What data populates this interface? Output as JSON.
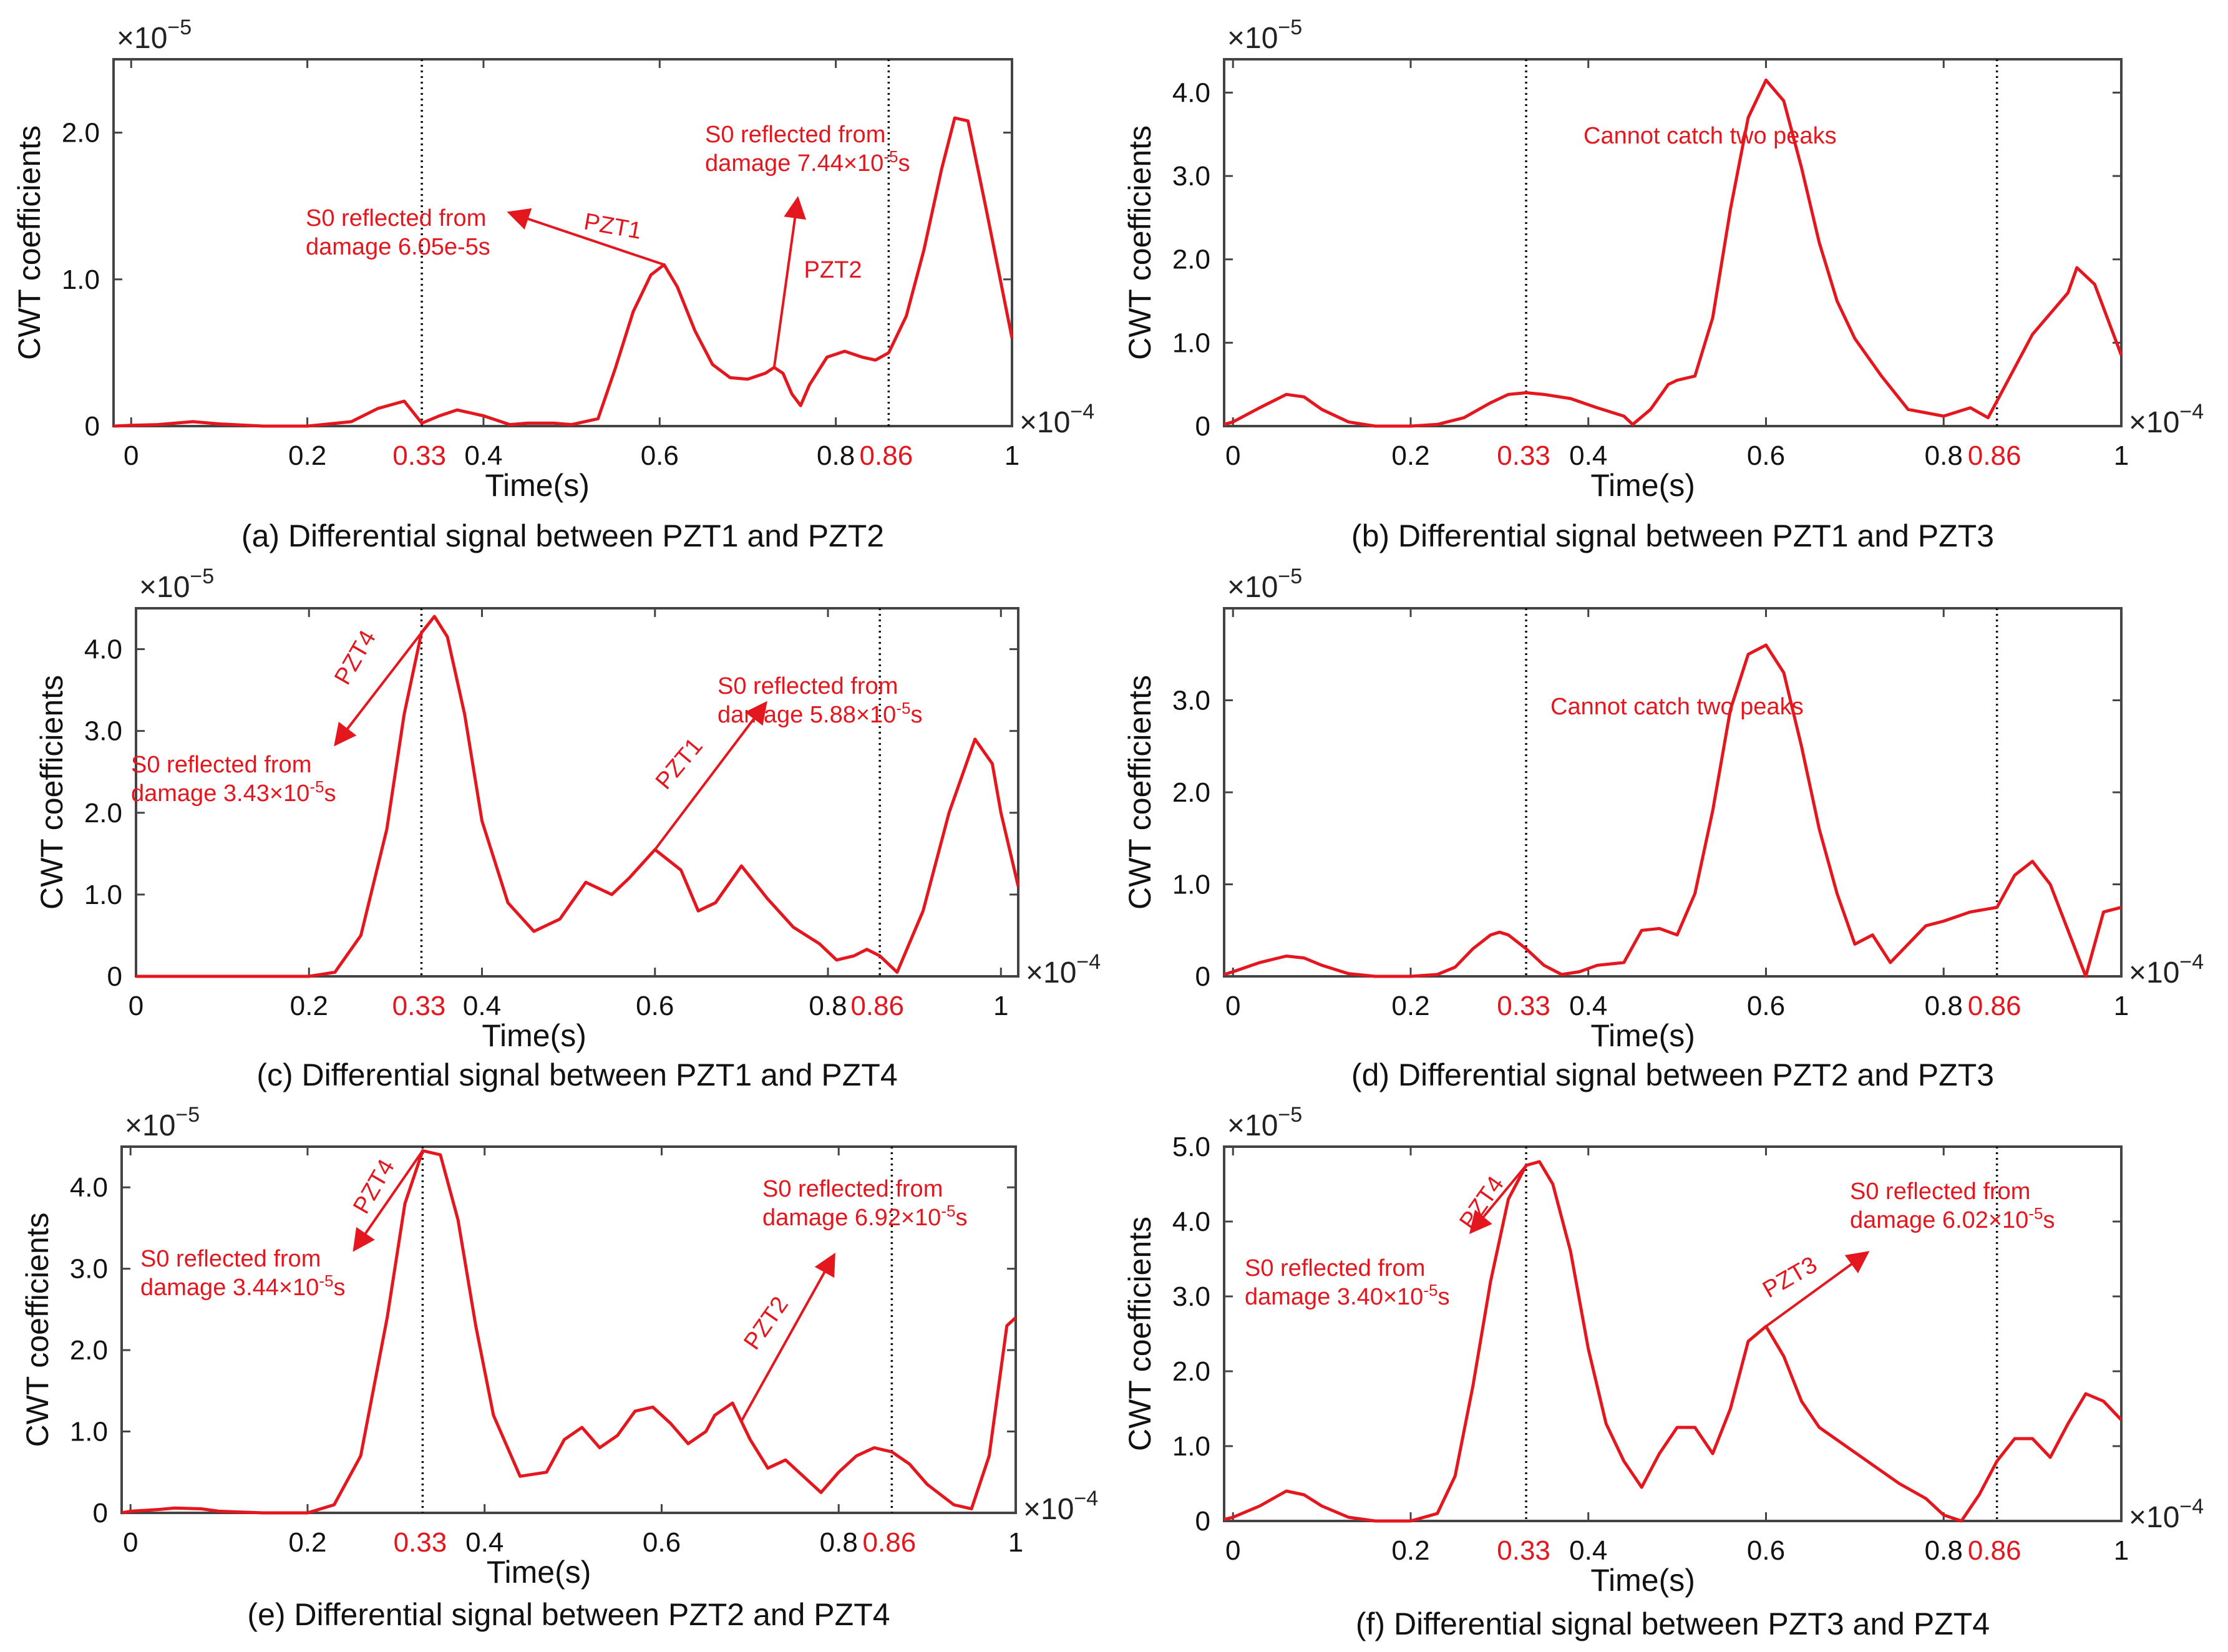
{
  "figure": {
    "panels": [
      {
        "id": "a",
        "caption": "(a) Differential signal between PZT1 and PZT2",
        "ylabel": "CWT coefficients",
        "xlabel": "Time(s)",
        "y_multiplier": "×10",
        "y_exponent": "−5",
        "x_multiplier": "×10",
        "x_exponent": "−4",
        "y_ticks": [
          "0",
          "1.0",
          "2.0"
        ],
        "x_ticks_black": [
          "0",
          "0.2",
          "0.4",
          "0.6",
          "0.8",
          "1"
        ],
        "x_ticks_red": [
          "0.33",
          "0.86"
        ],
        "annotations": [
          {
            "line1": "S0 reflected from",
            "line2": "damage 6.05e-5s",
            "sensor": "PZT1"
          },
          {
            "line1": "S0 reflected from",
            "line2": "damage 7.44×10",
            "line2_sup": "-5",
            "line2_tail": "s",
            "sensor": "PZT2"
          }
        ]
      },
      {
        "id": "b",
        "caption": "(b) Differential signal between PZT1 and PZT3",
        "ylabel": "CWT coefficients",
        "xlabel": "Time(s)",
        "y_multiplier": "×10",
        "y_exponent": "−5",
        "x_multiplier": "×10",
        "x_exponent": "−4",
        "y_ticks": [
          "0",
          "1.0",
          "2.0",
          "3.0",
          "4.0"
        ],
        "x_ticks_black": [
          "0",
          "0.2",
          "0.4",
          "0.6",
          "0.8",
          "1"
        ],
        "x_ticks_red": [
          "0.33",
          "0.86"
        ],
        "note": "Cannot catch two peaks"
      },
      {
        "id": "c",
        "caption": "(c) Differential signal between PZT1 and PZT4",
        "ylabel": "CWT coefficients",
        "xlabel": "Time(s)",
        "y_multiplier": "×10",
        "y_exponent": "−5",
        "x_multiplier": "×10",
        "x_exponent": "−4",
        "y_ticks": [
          "0",
          "1.0",
          "2.0",
          "3.0",
          "4.0"
        ],
        "x_ticks_black": [
          "0",
          "0.2",
          "0.4",
          "0.6",
          "0.8",
          "1"
        ],
        "x_ticks_red": [
          "0.33",
          "0.86"
        ],
        "annotations": [
          {
            "line1": "S0 reflected from",
            "line2": "damage 3.43×10",
            "line2_sup": "-5",
            "line2_tail": "s",
            "sensor": "PZT4"
          },
          {
            "line1": "S0 reflected from",
            "line2": "damage 5.88×10",
            "line2_sup": "-5",
            "line2_tail": "s",
            "sensor": "PZT1"
          }
        ]
      },
      {
        "id": "d",
        "caption": "(d) Differential signal between PZT2 and PZT3",
        "ylabel": "CWT coefficients",
        "xlabel": "Time(s)",
        "y_multiplier": "×10",
        "y_exponent": "−5",
        "x_multiplier": "×10",
        "x_exponent": "−4",
        "y_ticks": [
          "0",
          "1.0",
          "2.0",
          "3.0"
        ],
        "x_ticks_black": [
          "0",
          "0.2",
          "0.4",
          "0.6",
          "0.8",
          "1"
        ],
        "x_ticks_red": [
          "0.33",
          "0.86"
        ],
        "note": "Cannot catch two peaks"
      },
      {
        "id": "e",
        "caption": "(e) Differential signal between PZT2 and PZT4",
        "ylabel": "CWT coefficients",
        "xlabel": "Time(s)",
        "y_multiplier": "×10",
        "y_exponent": "−5",
        "x_multiplier": "×10",
        "x_exponent": "−4",
        "y_ticks": [
          "0",
          "1.0",
          "2.0",
          "3.0",
          "4.0"
        ],
        "x_ticks_black": [
          "0",
          "0.2",
          "0.4",
          "0.6",
          "0.8",
          "1"
        ],
        "x_ticks_red": [
          "0.33",
          "0.86"
        ],
        "annotations": [
          {
            "line1": "S0 reflected from",
            "line2": "damage 3.44×10",
            "line2_sup": "-5",
            "line2_tail": "s",
            "sensor": "PZT4"
          },
          {
            "line1": "S0 reflected from",
            "line2": "damage 6.92×10",
            "line2_sup": "-5",
            "line2_tail": "s",
            "sensor": "PZT2"
          }
        ]
      },
      {
        "id": "f",
        "caption": "(f) Differential signal between PZT3 and PZT4",
        "ylabel": "CWT coefficients",
        "xlabel": "Time(s)",
        "y_multiplier": "×10",
        "y_exponent": "−5",
        "x_multiplier": "×10",
        "x_exponent": "−4",
        "y_ticks": [
          "0",
          "1.0",
          "2.0",
          "3.0",
          "4.0",
          "5.0"
        ],
        "x_ticks_black": [
          "0",
          "0.2",
          "0.4",
          "0.6",
          "0.8",
          "1"
        ],
        "x_ticks_red": [
          "0.33",
          "0.86"
        ],
        "annotations": [
          {
            "line1": "S0 reflected from",
            "line2": "damage 3.40×10",
            "line2_sup": "-5",
            "line2_tail": "s",
            "sensor": "PZT4"
          },
          {
            "line1": "S0 reflected from",
            "line2": "damage 6.02×10",
            "line2_sup": "-5",
            "line2_tail": "s",
            "sensor": "PZT3"
          }
        ]
      }
    ]
  },
  "colors": {
    "curve": "#e4161e",
    "axis": "#444444",
    "reference_line": "#111111",
    "text": "#111111"
  },
  "chart_data": [
    {
      "type": "line",
      "title": "(a) Differential signal between PZT1 and PZT2",
      "xlabel": "Time(s)",
      "ylabel": "CWT coefficients",
      "x_unit_scale": "1e-4",
      "y_unit_scale": "1e-5",
      "xlim": [
        -0.02,
        1.0
      ],
      "ylim": [
        0,
        2.5
      ],
      "reference_lines_x": [
        0.33,
        0.86
      ],
      "series": [
        {
          "name": "CWT",
          "x": [
            -0.02,
            0,
            0.03,
            0.05,
            0.07,
            0.1,
            0.15,
            0.2,
            0.25,
            0.28,
            0.31,
            0.33,
            0.35,
            0.37,
            0.4,
            0.43,
            0.45,
            0.48,
            0.5,
            0.53,
            0.55,
            0.57,
            0.59,
            0.605,
            0.62,
            0.64,
            0.66,
            0.68,
            0.7,
            0.72,
            0.73,
            0.74,
            0.75,
            0.76,
            0.77,
            0.79,
            0.81,
            0.83,
            0.845,
            0.86,
            0.88,
            0.9,
            0.92,
            0.935,
            0.95,
            0.97,
            1.0
          ],
          "y": [
            0,
            0.005,
            0.01,
            0.02,
            0.03,
            0.015,
            0,
            0,
            0.03,
            0.12,
            0.17,
            0.02,
            0.07,
            0.11,
            0.07,
            0.01,
            0.02,
            0.02,
            0.01,
            0.05,
            0.4,
            0.78,
            1.03,
            1.1,
            0.95,
            0.65,
            0.42,
            0.33,
            0.32,
            0.36,
            0.4,
            0.36,
            0.22,
            0.14,
            0.28,
            0.47,
            0.51,
            0.47,
            0.45,
            0.5,
            0.75,
            1.2,
            1.75,
            2.1,
            2.08,
            1.5,
            0.6
          ]
        }
      ]
    },
    {
      "type": "line",
      "title": "(b) Differential signal between PZT1 and PZT3",
      "xlabel": "Time(s)",
      "ylabel": "CWT coefficients",
      "x_unit_scale": "1e-4",
      "y_unit_scale": "1e-5",
      "xlim": [
        -0.01,
        1.0
      ],
      "ylim": [
        0,
        4.4
      ],
      "reference_lines_x": [
        0.33,
        0.86
      ],
      "series": [
        {
          "name": "CWT",
          "x": [
            -0.01,
            0,
            0.03,
            0.06,
            0.08,
            0.1,
            0.13,
            0.16,
            0.2,
            0.23,
            0.26,
            0.29,
            0.31,
            0.33,
            0.35,
            0.38,
            0.41,
            0.44,
            0.45,
            0.47,
            0.49,
            0.5,
            0.52,
            0.54,
            0.56,
            0.58,
            0.6,
            0.62,
            0.64,
            0.66,
            0.68,
            0.7,
            0.73,
            0.76,
            0.8,
            0.83,
            0.85,
            0.86,
            0.88,
            0.9,
            0.92,
            0.94,
            0.95,
            0.97,
            1.0
          ],
          "y": [
            0.02,
            0.05,
            0.22,
            0.38,
            0.35,
            0.2,
            0.05,
            0,
            0,
            0.02,
            0.1,
            0.28,
            0.38,
            0.4,
            0.38,
            0.33,
            0.22,
            0.12,
            0.02,
            0.2,
            0.5,
            0.55,
            0.6,
            1.3,
            2.6,
            3.7,
            4.15,
            3.9,
            3.1,
            2.2,
            1.5,
            1.05,
            0.6,
            0.2,
            0.12,
            0.22,
            0.1,
            0.3,
            0.7,
            1.1,
            1.35,
            1.6,
            1.9,
            1.7,
            0.85
          ]
        }
      ]
    },
    {
      "type": "line",
      "title": "(c) Differential signal between PZT1 and PZT4",
      "xlabel": "Time(s)",
      "ylabel": "CWT coefficients",
      "x_unit_scale": "1e-4",
      "y_unit_scale": "1e-5",
      "xlim": [
        0,
        1.02
      ],
      "ylim": [
        0,
        4.5
      ],
      "reference_lines_x": [
        0.33,
        0.86
      ],
      "series": [
        {
          "name": "CWT",
          "x": [
            0,
            0.1,
            0.2,
            0.23,
            0.26,
            0.29,
            0.31,
            0.33,
            0.345,
            0.36,
            0.38,
            0.4,
            0.43,
            0.46,
            0.49,
            0.52,
            0.55,
            0.57,
            0.6,
            0.63,
            0.65,
            0.67,
            0.7,
            0.73,
            0.76,
            0.79,
            0.81,
            0.83,
            0.845,
            0.86,
            0.88,
            0.91,
            0.94,
            0.97,
            0.99,
            1.0,
            1.02
          ],
          "y": [
            0,
            0,
            0,
            0.05,
            0.5,
            1.8,
            3.2,
            4.2,
            4.4,
            4.15,
            3.2,
            1.9,
            0.9,
            0.55,
            0.7,
            1.15,
            1.0,
            1.2,
            1.55,
            1.3,
            0.8,
            0.9,
            1.35,
            0.95,
            0.6,
            0.4,
            0.2,
            0.25,
            0.33,
            0.25,
            0.05,
            0.8,
            2.0,
            2.9,
            2.6,
            2.0,
            1.1
          ]
        }
      ]
    },
    {
      "type": "line",
      "title": "(d) Differential signal between PZT2 and PZT3",
      "xlabel": "Time(s)",
      "ylabel": "CWT coefficients",
      "x_unit_scale": "1e-4",
      "y_unit_scale": "1e-5",
      "xlim": [
        -0.01,
        1.0
      ],
      "ylim": [
        0,
        4.0
      ],
      "reference_lines_x": [
        0.33,
        0.86
      ],
      "series": [
        {
          "name": "CWT",
          "x": [
            -0.01,
            0,
            0.03,
            0.06,
            0.08,
            0.1,
            0.13,
            0.16,
            0.2,
            0.23,
            0.25,
            0.27,
            0.29,
            0.3,
            0.31,
            0.33,
            0.35,
            0.37,
            0.39,
            0.41,
            0.44,
            0.46,
            0.48,
            0.5,
            0.52,
            0.54,
            0.56,
            0.58,
            0.6,
            0.62,
            0.64,
            0.66,
            0.68,
            0.7,
            0.72,
            0.74,
            0.76,
            0.78,
            0.8,
            0.83,
            0.86,
            0.88,
            0.9,
            0.92,
            0.94,
            0.96,
            0.98,
            1.0
          ],
          "y": [
            0.02,
            0.05,
            0.15,
            0.22,
            0.2,
            0.12,
            0.03,
            0,
            0,
            0.02,
            0.1,
            0.3,
            0.45,
            0.48,
            0.45,
            0.3,
            0.12,
            0.02,
            0.05,
            0.12,
            0.15,
            0.5,
            0.52,
            0.45,
            0.9,
            1.8,
            2.9,
            3.5,
            3.6,
            3.3,
            2.5,
            1.6,
            0.9,
            0.35,
            0.45,
            0.15,
            0.35,
            0.55,
            0.6,
            0.7,
            0.75,
            1.1,
            1.25,
            1.0,
            0.5,
            0.0,
            0.7,
            0.75
          ]
        }
      ]
    },
    {
      "type": "line",
      "title": "(e) Differential signal between PZT2 and PZT4",
      "xlabel": "Time(s)",
      "ylabel": "CWT coefficients",
      "x_unit_scale": "1e-4",
      "y_unit_scale": "1e-5",
      "xlim": [
        -0.01,
        1.0
      ],
      "ylim": [
        0,
        4.5
      ],
      "reference_lines_x": [
        0.33,
        0.86
      ],
      "series": [
        {
          "name": "CWT",
          "x": [
            -0.01,
            0,
            0.03,
            0.05,
            0.08,
            0.1,
            0.15,
            0.2,
            0.23,
            0.26,
            0.29,
            0.31,
            0.33,
            0.35,
            0.37,
            0.39,
            0.41,
            0.44,
            0.47,
            0.49,
            0.51,
            0.53,
            0.55,
            0.57,
            0.59,
            0.61,
            0.63,
            0.65,
            0.66,
            0.68,
            0.7,
            0.72,
            0.74,
            0.76,
            0.78,
            0.8,
            0.82,
            0.84,
            0.86,
            0.88,
            0.9,
            0.93,
            0.95,
            0.97,
            0.99,
            1.0
          ],
          "y": [
            0,
            0.02,
            0.04,
            0.06,
            0.05,
            0.02,
            0,
            0,
            0.1,
            0.7,
            2.4,
            3.8,
            4.45,
            4.4,
            3.6,
            2.3,
            1.2,
            0.45,
            0.5,
            0.9,
            1.05,
            0.8,
            0.95,
            1.25,
            1.3,
            1.1,
            0.85,
            1.0,
            1.2,
            1.35,
            0.9,
            0.55,
            0.65,
            0.45,
            0.25,
            0.5,
            0.7,
            0.8,
            0.75,
            0.6,
            0.35,
            0.1,
            0.05,
            0.7,
            2.3,
            2.4
          ]
        }
      ]
    },
    {
      "type": "line",
      "title": "(f) Differential signal between PZT3 and PZT4",
      "xlabel": "Time(s)",
      "ylabel": "CWT coefficients",
      "x_unit_scale": "1e-4",
      "y_unit_scale": "1e-5",
      "xlim": [
        -0.01,
        1.0
      ],
      "ylim": [
        0,
        5.0
      ],
      "reference_lines_x": [
        0.33,
        0.86
      ],
      "series": [
        {
          "name": "CWT",
          "x": [
            -0.01,
            0,
            0.03,
            0.06,
            0.08,
            0.1,
            0.13,
            0.16,
            0.2,
            0.23,
            0.25,
            0.27,
            0.29,
            0.31,
            0.33,
            0.345,
            0.36,
            0.38,
            0.4,
            0.42,
            0.44,
            0.46,
            0.48,
            0.5,
            0.52,
            0.54,
            0.56,
            0.58,
            0.6,
            0.62,
            0.64,
            0.66,
            0.69,
            0.72,
            0.75,
            0.78,
            0.8,
            0.82,
            0.84,
            0.86,
            0.88,
            0.9,
            0.92,
            0.94,
            0.96,
            0.98,
            1.0
          ],
          "y": [
            0.02,
            0.05,
            0.2,
            0.4,
            0.35,
            0.2,
            0.05,
            0,
            0,
            0.1,
            0.6,
            1.8,
            3.2,
            4.3,
            4.75,
            4.8,
            4.5,
            3.6,
            2.3,
            1.3,
            0.8,
            0.45,
            0.9,
            1.25,
            1.25,
            0.9,
            1.5,
            2.4,
            2.6,
            2.2,
            1.6,
            1.25,
            1.0,
            0.75,
            0.5,
            0.3,
            0.08,
            0.0,
            0.35,
            0.8,
            1.1,
            1.1,
            0.85,
            1.3,
            1.7,
            1.6,
            1.35
          ]
        }
      ]
    }
  ]
}
